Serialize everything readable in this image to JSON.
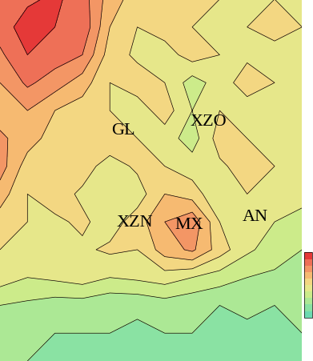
{
  "chart_data": {
    "type": "contour",
    "tick_labels": false,
    "cells": [
      [
        0.8,
        0.88,
        0.92,
        0.85,
        0.65,
        0.55,
        0.5,
        0.55,
        0.5,
        0.45,
        0.5,
        0.48
      ],
      [
        0.85,
        0.95,
        0.9,
        0.88,
        0.6,
        0.5,
        0.55,
        0.5,
        0.45,
        0.5,
        0.55,
        0.5
      ],
      [
        0.78,
        0.9,
        0.85,
        0.8,
        0.55,
        0.48,
        0.45,
        0.55,
        0.5,
        0.48,
        0.45,
        0.5
      ],
      [
        0.7,
        0.82,
        0.75,
        0.65,
        0.5,
        0.55,
        0.5,
        0.35,
        0.45,
        0.55,
        0.5,
        0.45
      ],
      [
        0.65,
        0.7,
        0.6,
        0.55,
        0.5,
        0.45,
        0.55,
        0.4,
        0.5,
        0.45,
        0.48,
        0.5
      ],
      [
        0.72,
        0.65,
        0.55,
        0.5,
        0.58,
        0.5,
        0.45,
        0.35,
        0.55,
        0.5,
        0.45,
        0.48
      ],
      [
        0.75,
        0.55,
        0.5,
        0.55,
        0.45,
        0.52,
        0.5,
        0.45,
        0.48,
        0.55,
        0.5,
        0.45
      ],
      [
        0.65,
        0.5,
        0.55,
        0.48,
        0.5,
        0.45,
        0.6,
        0.55,
        0.42,
        0.5,
        0.48,
        0.42
      ],
      [
        0.55,
        0.5,
        0.48,
        0.52,
        0.45,
        0.55,
        0.7,
        0.78,
        0.5,
        0.45,
        0.4,
        0.38
      ],
      [
        0.5,
        0.45,
        0.5,
        0.48,
        0.52,
        0.5,
        0.65,
        0.72,
        0.55,
        0.42,
        0.35,
        0.3
      ],
      [
        0.45,
        0.4,
        0.42,
        0.45,
        0.4,
        0.42,
        0.45,
        0.4,
        0.35,
        0.3,
        0.28,
        0.25
      ],
      [
        0.3,
        0.28,
        0.25,
        0.25,
        0.22,
        0.22,
        0.25,
        0.22,
        0.2,
        0.22,
        0.2,
        0.22
      ],
      [
        0.25,
        0.22,
        0.2,
        0.2,
        0.2,
        0.18,
        0.2,
        0.2,
        0.2,
        0.18,
        0.2,
        0.2
      ],
      [
        0.22,
        0.2,
        0.2,
        0.18,
        0.18,
        0.2,
        0.18,
        0.2,
        0.18,
        0.2,
        0.18,
        0.18
      ]
    ],
    "colorbar_range": [
      0,
      1
    ],
    "annotations": [
      {
        "text": "GL",
        "x": 4.5,
        "y": 4.7
      },
      {
        "text": "XZO",
        "x": 7.6,
        "y": 4.4
      },
      {
        "text": "XZN",
        "x": 4.9,
        "y": 8.0
      },
      {
        "text": "MX",
        "x": 6.9,
        "y": 8.1
      },
      {
        "text": "AN",
        "x": 9.3,
        "y": 7.8
      }
    ]
  }
}
